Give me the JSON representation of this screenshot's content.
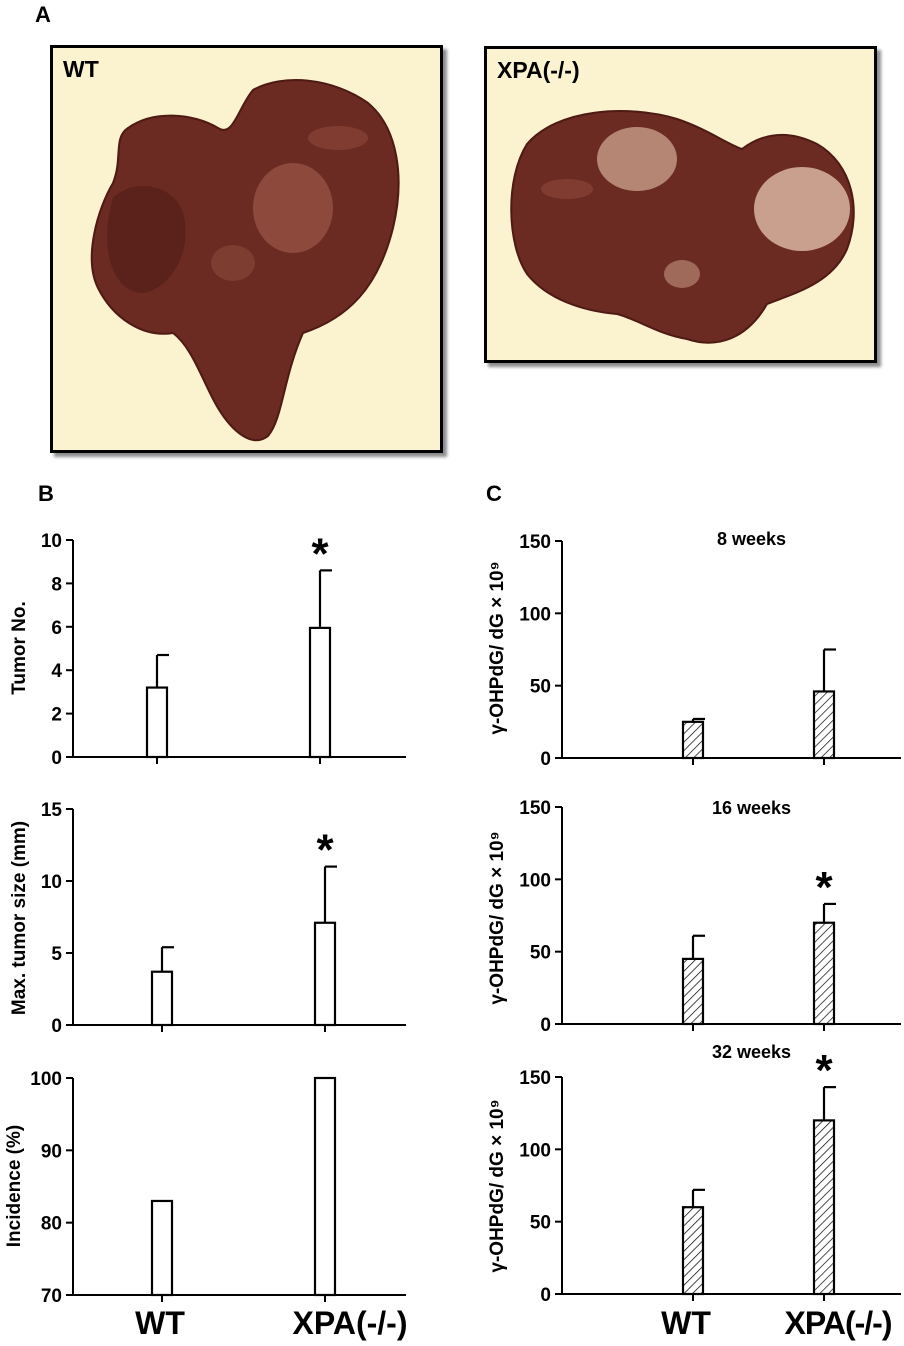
{
  "panels": {
    "a": "A",
    "b": "B",
    "c": "C"
  },
  "photos": [
    {
      "label": "WT"
    },
    {
      "label": "XPA(-/-)"
    }
  ],
  "colors": {
    "liver": "#6b2a22",
    "liver_dark": "#4d1a14",
    "liver_highlight": "#8d4a3c",
    "tumor": "#c9a08e",
    "photo_bg": "#fbf2cf"
  },
  "group_labels": [
    "WT",
    "XPA(-/-)"
  ],
  "chart_data": [
    {
      "type": "bar",
      "panel": "B",
      "ylabel": "Tumor No.",
      "categories": [
        "WT",
        "XPA(-/-)"
      ],
      "values": [
        3.2,
        5.95
      ],
      "errors": [
        1.5,
        2.65
      ],
      "ylim": [
        0,
        10
      ],
      "yticks": [
        0,
        2,
        4,
        6,
        8,
        10
      ],
      "significant": [
        false,
        true
      ],
      "fill": "open"
    },
    {
      "type": "bar",
      "panel": "B",
      "ylabel": "Max. tumor size (mm)",
      "categories": [
        "WT",
        "XPA(-/-)"
      ],
      "values": [
        3.7,
        7.1
      ],
      "errors": [
        1.7,
        3.9
      ],
      "ylim": [
        0,
        15
      ],
      "yticks": [
        0,
        5,
        10,
        15
      ],
      "significant": [
        false,
        true
      ],
      "fill": "open"
    },
    {
      "type": "bar",
      "panel": "B",
      "ylabel": "Incidence (%)",
      "categories": [
        "WT",
        "XPA(-/-)"
      ],
      "values": [
        83,
        100
      ],
      "errors": [
        0,
        0
      ],
      "ylim": [
        70,
        100
      ],
      "yticks": [
        70,
        80,
        90,
        100
      ],
      "significant": [
        false,
        false
      ],
      "fill": "open"
    },
    {
      "type": "bar",
      "panel": "C",
      "title": "8 weeks",
      "ylabel": "γ-OHPdG/ dG × 10⁹",
      "categories": [
        "WT",
        "XPA(-/-)"
      ],
      "values": [
        25,
        46
      ],
      "errors": [
        2,
        29
      ],
      "ylim": [
        0,
        150
      ],
      "yticks": [
        0,
        50,
        100,
        150
      ],
      "significant": [
        false,
        false
      ],
      "fill": "hatched"
    },
    {
      "type": "bar",
      "panel": "C",
      "title": "16 weeks",
      "ylabel": "γ-OHPdG/ dG × 10⁹",
      "categories": [
        "WT",
        "XPA(-/-)"
      ],
      "values": [
        45,
        70
      ],
      "errors": [
        16,
        13
      ],
      "ylim": [
        0,
        150
      ],
      "yticks": [
        0,
        50,
        100,
        150
      ],
      "significant": [
        false,
        true
      ],
      "fill": "hatched"
    },
    {
      "type": "bar",
      "panel": "C",
      "title": "32 weeks",
      "ylabel": "γ-OHPdG/ dG × 10⁹",
      "categories": [
        "WT",
        "XPA(-/-)"
      ],
      "values": [
        60,
        120
      ],
      "errors": [
        12,
        23
      ],
      "ylim": [
        0,
        150
      ],
      "yticks": [
        0,
        50,
        100,
        150
      ],
      "significant": [
        false,
        true
      ],
      "fill": "hatched"
    }
  ]
}
